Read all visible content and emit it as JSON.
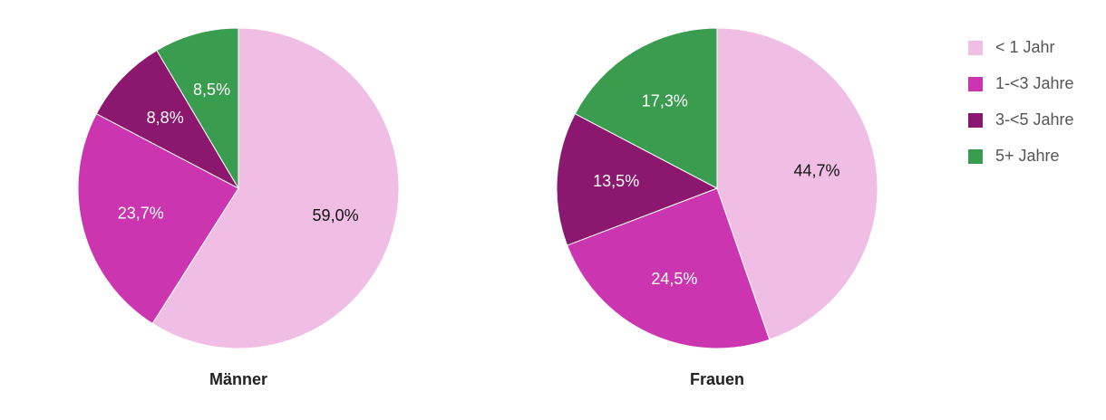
{
  "chart_data": [
    {
      "type": "pie",
      "title": "Männer",
      "categories": [
        "< 1 Jahr",
        "1-<3 Jahre",
        "3-<5 Jahre",
        "5+ Jahre"
      ],
      "colors": [
        "#f0bde4",
        "#cc35b0",
        "#8b176e",
        "#3a9c4f"
      ],
      "values": [
        59.0,
        23.7,
        8.8,
        8.5
      ],
      "value_labels": [
        "59,0%",
        "23,7%",
        "8,8%",
        "8,5%"
      ],
      "legend": "right"
    },
    {
      "type": "pie",
      "title": "Frauen",
      "categories": [
        "< 1 Jahr",
        "1-<3 Jahre",
        "3-<5 Jahre",
        "5+ Jahre"
      ],
      "colors": [
        "#f0bde4",
        "#cc35b0",
        "#8b176e",
        "#3a9c4f"
      ],
      "values": [
        44.7,
        24.5,
        13.5,
        17.3
      ],
      "value_labels": [
        "44,7%",
        "24,5%",
        "13,5%",
        "17,3%"
      ]
    }
  ]
}
